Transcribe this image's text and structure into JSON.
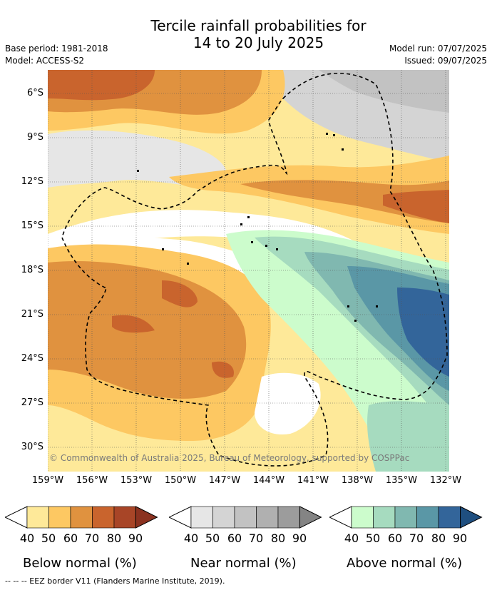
{
  "header": {
    "title_line1": "Tercile rainfall probabilities for",
    "title_line2": "14 to 20 July 2025",
    "base_period": "Base period: 1981-2018",
    "model": "Model: ACCESS-S2",
    "model_run": "Model run: 07/07/2025",
    "issued": "Issued: 09/07/2025"
  },
  "map": {
    "copyright": "© Commonwealth of Australia 2025, Bureau of Meteorology, supported by COSPPac",
    "lat_labels": [
      "6°S",
      "9°S",
      "12°S",
      "15°S",
      "18°S",
      "21°S",
      "24°S",
      "27°S",
      "30°S"
    ],
    "lon_labels": [
      "159°W",
      "156°W",
      "153°W",
      "150°W",
      "147°W",
      "144°W",
      "141°W",
      "138°W",
      "135°W",
      "132°W"
    ]
  },
  "legend": {
    "ticks": [
      "40",
      "50",
      "60",
      "70",
      "80",
      "90"
    ],
    "groups": [
      {
        "title": "Below normal (%)",
        "colors": [
          "#fee999",
          "#fdc862",
          "#e0923f",
          "#c9642d",
          "#a84527",
          "#8b3220"
        ]
      },
      {
        "title": "Near normal (%)",
        "colors": [
          "#e6e6e6",
          "#d4d4d4",
          "#c2c2c2",
          "#b0b0b0",
          "#9c9c9c",
          "#848484"
        ]
      },
      {
        "title": "Above normal (%)",
        "colors": [
          "#ccfccc",
          "#a6dbbf",
          "#80b8b0",
          "#5a97a6",
          "#33659a",
          "#1f4f80"
        ]
      }
    ]
  },
  "footer": {
    "eez_note": "--  --  -- EEZ border V11 (Flanders Marine Institute, 2019)."
  }
}
